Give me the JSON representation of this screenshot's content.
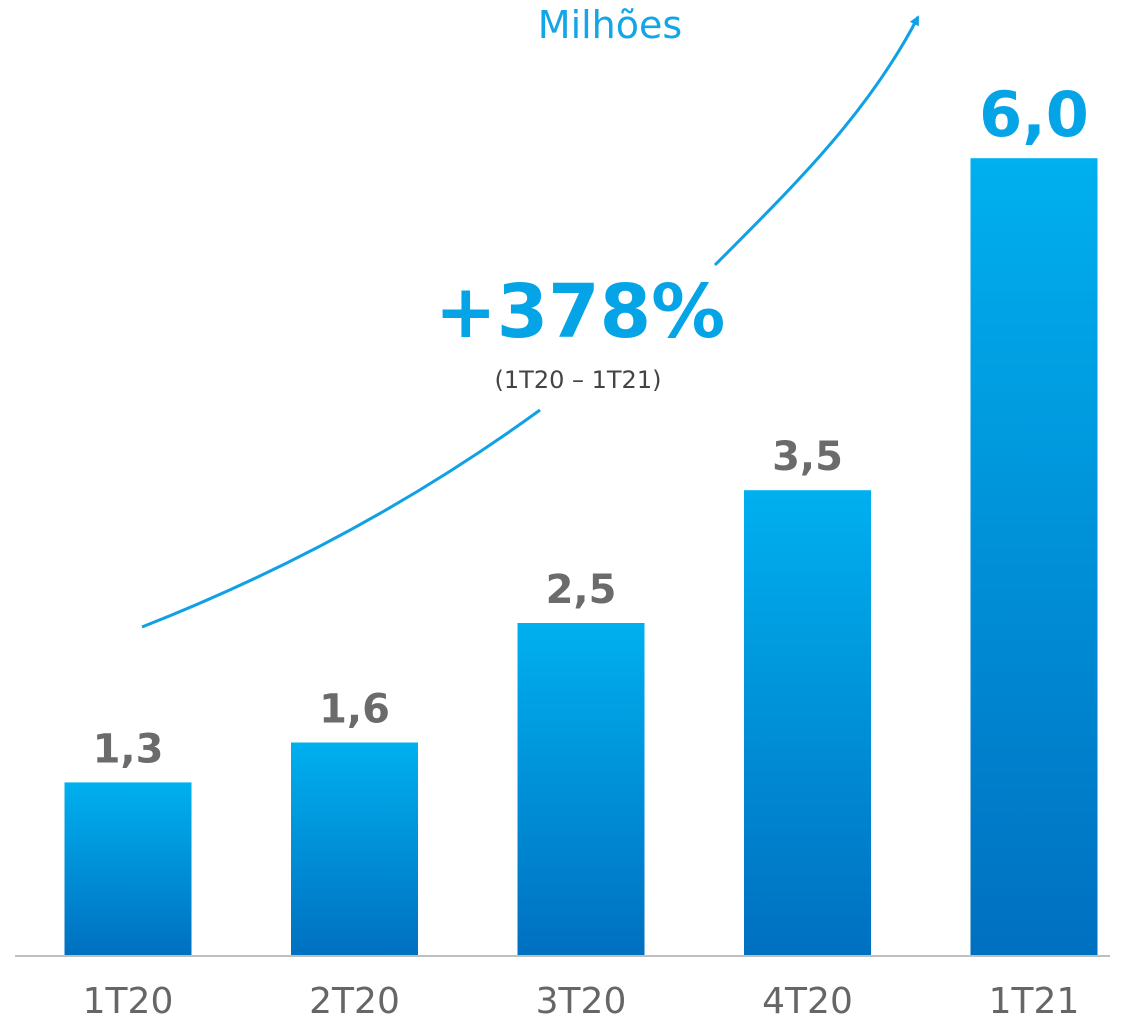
{
  "chart_data": {
    "type": "bar",
    "units": "Milhões",
    "categories": [
      "1T20",
      "2T20",
      "3T20",
      "4T20",
      "1T21"
    ],
    "values": [
      1.3,
      1.6,
      2.5,
      3.5,
      6.0
    ],
    "value_labels": [
      "1,3",
      "1,6",
      "2,5",
      "3,5",
      "6,0"
    ],
    "highlight_index": 4,
    "ylim": [
      0,
      6.5
    ],
    "grid": false,
    "annotation": {
      "growth": "+378%",
      "period": "(1T20 – 1T21)"
    },
    "colors": {
      "bar_top": "#00b0ef",
      "bar_bottom": "#0070c0",
      "value_label": "#6b6b6b",
      "highlight": "#05a4e6",
      "arrow": "#0fa0e6",
      "axis": "#bfbfbf"
    }
  }
}
